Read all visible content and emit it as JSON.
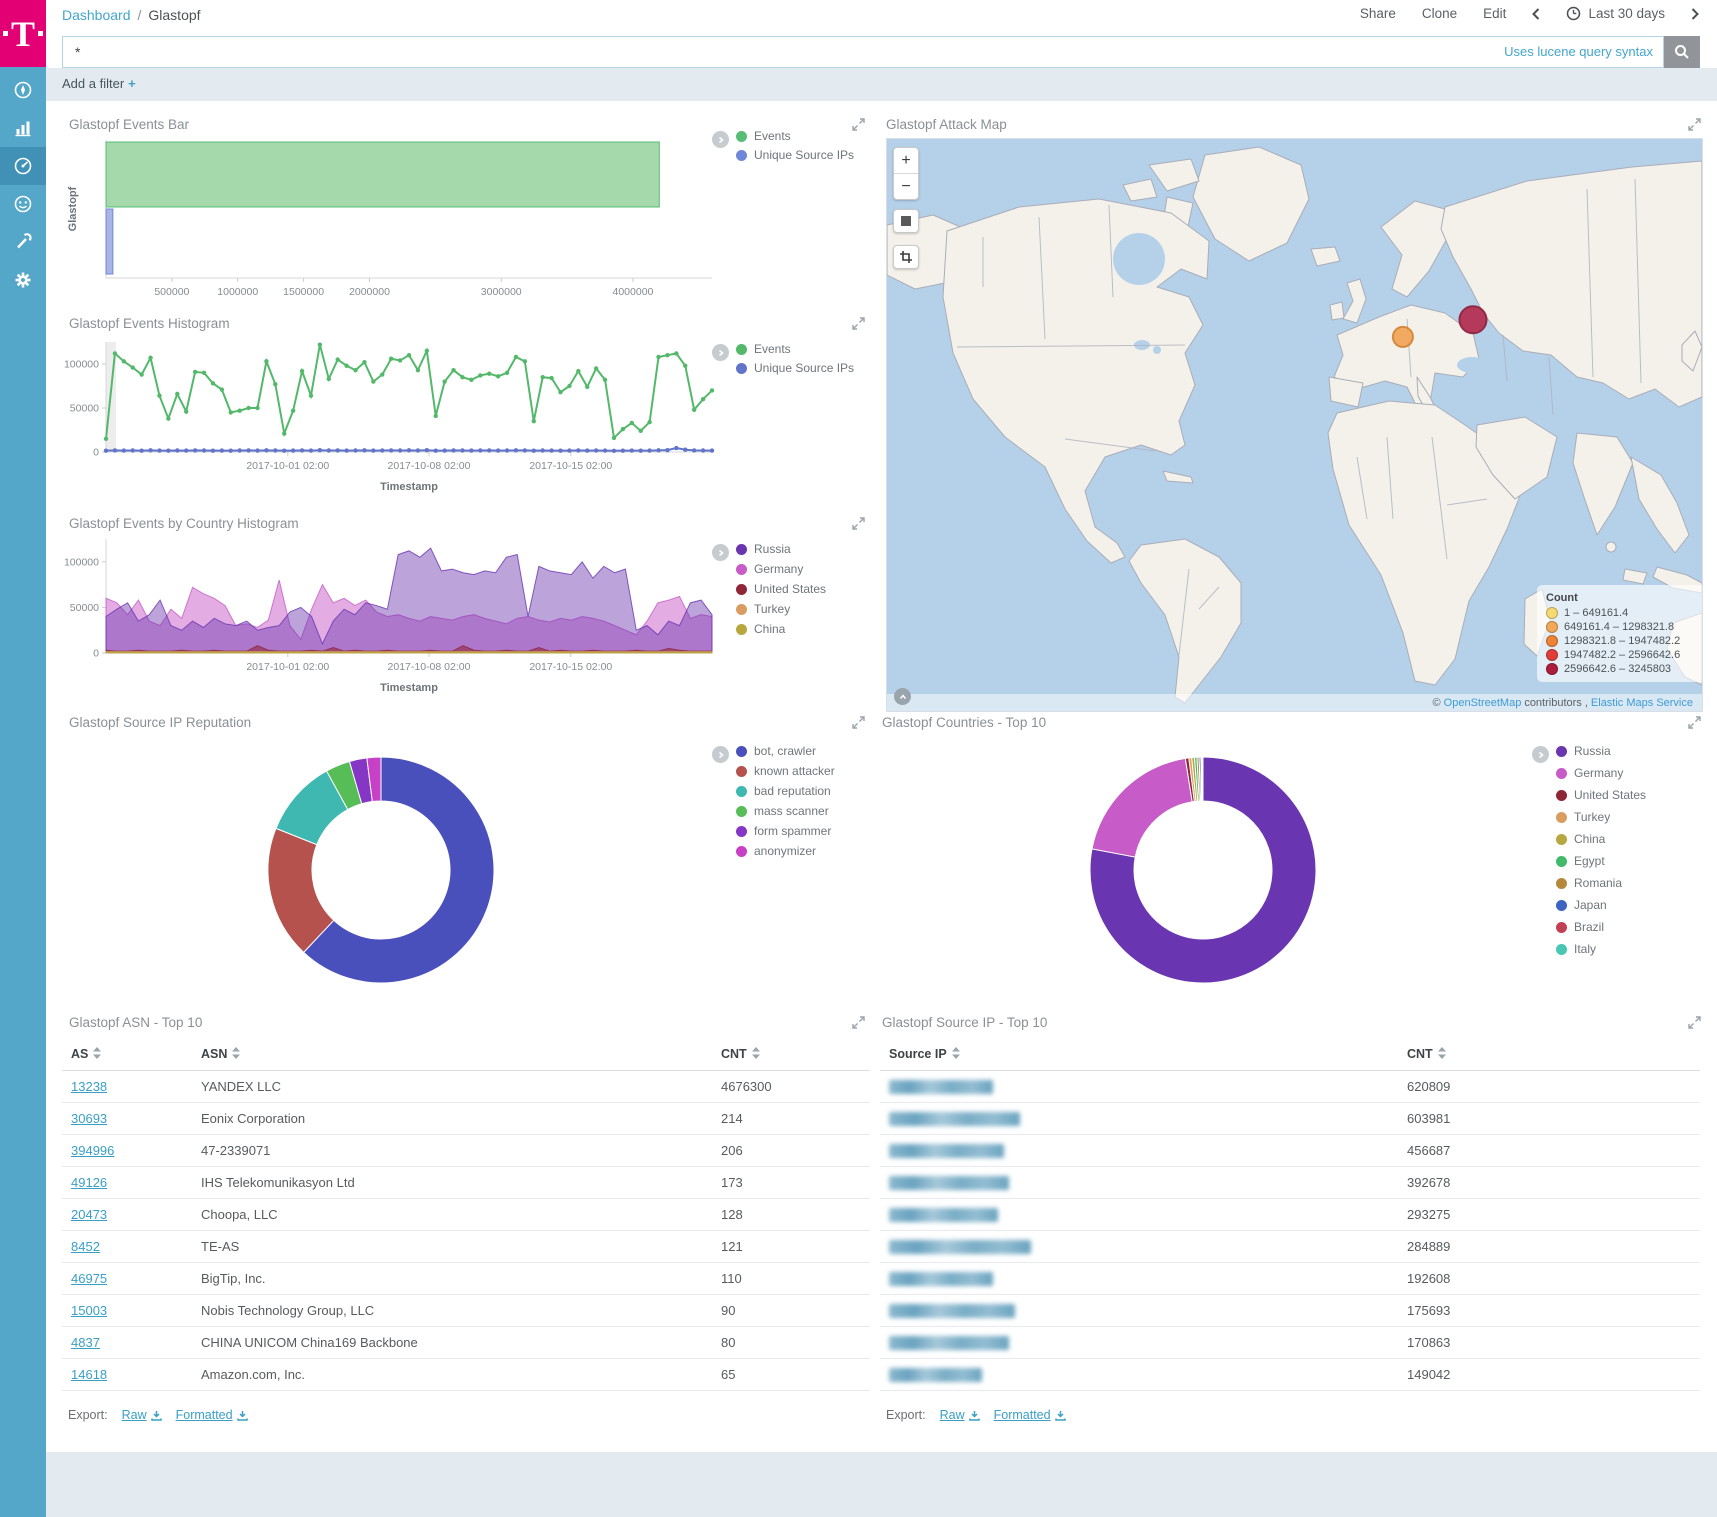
{
  "topbar": {
    "breadcrumb": {
      "root": "Dashboard",
      "separator": "/",
      "current": "Glastopf"
    },
    "actions": {
      "share": "Share",
      "clone": "Clone",
      "edit": "Edit"
    },
    "time_range": "Last 30 days"
  },
  "querybar": {
    "value": "*",
    "hint": "Uses lucene query syntax"
  },
  "filterbar": {
    "add_filter_label": "Add a filter",
    "plus": "+"
  },
  "panels": {
    "events_bar": {
      "title": "Glastopf Events Bar"
    },
    "attack_map": {
      "title": "Glastopf Attack Map",
      "controls": {
        "zoom_in": "+",
        "zoom_out": "−"
      },
      "legend": {
        "title": "Count",
        "ranges": [
          {
            "label": "1 – 649161.4",
            "color": "#f7d974"
          },
          {
            "label": "649161.4 – 1298321.8",
            "color": "#f2a857"
          },
          {
            "label": "1298321.8 – 1947482.2",
            "color": "#ee8335"
          },
          {
            "label": "1947482.2 – 2596642.6",
            "color": "#e23e38"
          },
          {
            "label": "2596642.6 – 3245803",
            "color": "#ae1e3c"
          }
        ]
      },
      "markers": [
        {
          "fx": 0.633,
          "fy": 0.346,
          "r": 10,
          "color": "#f2a558",
          "stroke": "#d4802f"
        },
        {
          "fx": 0.719,
          "fy": 0.316,
          "r": 13.5,
          "color": "#b52d4f",
          "stroke": "#8e1b3a"
        }
      ],
      "attribution": {
        "prefix": "©",
        "link1": "OpenStreetMap",
        "middle": "contributors ,",
        "link2": "Elastic Maps Service"
      }
    },
    "events_histogram": {
      "title": "Glastopf Events Histogram"
    },
    "country_histogram": {
      "title": "Glastopf Events by Country Histogram"
    },
    "reputation": {
      "title": "Glastopf Source IP Reputation"
    },
    "countries": {
      "title": "Glastopf Countries - Top 10"
    },
    "asn_table": {
      "title": "Glastopf ASN - Top 10",
      "columns": [
        "AS",
        "ASN",
        "CNT"
      ],
      "rows": [
        [
          "13238",
          "YANDEX LLC",
          "4676300"
        ],
        [
          "30693",
          "Eonix Corporation",
          "214"
        ],
        [
          "394996",
          "47-2339071",
          "206"
        ],
        [
          "49126",
          "IHS Telekomunikasyon Ltd",
          "173"
        ],
        [
          "20473",
          "Choopa, LLC",
          "128"
        ],
        [
          "8452",
          "TE-AS",
          "121"
        ],
        [
          "46975",
          "BigTip, Inc.",
          "110"
        ],
        [
          "15003",
          "Nobis Technology Group, LLC",
          "90"
        ],
        [
          "4837",
          "CHINA UNICOM China169 Backbone",
          "80"
        ],
        [
          "14618",
          "Amazon.com, Inc.",
          "65"
        ]
      ],
      "export_label": "Export:",
      "export_raw": "Raw",
      "export_formatted": "Formatted"
    },
    "ip_table": {
      "title": "Glastopf Source IP - Top 10",
      "columns": [
        "Source IP",
        "CNT"
      ],
      "rows": [
        {
          "redacted": true,
          "blur_width": 104,
          "cnt": "620809"
        },
        {
          "redacted": true,
          "blur_width": 131,
          "cnt": "603981"
        },
        {
          "redacted": true,
          "blur_width": 115,
          "cnt": "456687"
        },
        {
          "redacted": true,
          "blur_width": 120,
          "cnt": "392678"
        },
        {
          "redacted": true,
          "blur_width": 109,
          "cnt": "293275"
        },
        {
          "redacted": true,
          "blur_width": 142,
          "cnt": "284889"
        },
        {
          "redacted": true,
          "blur_width": 104,
          "cnt": "192608"
        },
        {
          "redacted": true,
          "blur_width": 126,
          "cnt": "175693"
        },
        {
          "redacted": true,
          "blur_width": 120,
          "cnt": "170863"
        },
        {
          "redacted": true,
          "blur_width": 93,
          "cnt": "149042"
        }
      ],
      "export_label": "Export:",
      "export_raw": "Raw",
      "export_formatted": "Formatted"
    }
  },
  "chart_data": [
    {
      "id": "events_bar",
      "type": "bar",
      "orientation": "horizontal",
      "title": "Glastopf Events Bar",
      "categories": [
        "Glastopf"
      ],
      "ylabel": "Glastopf",
      "xlim": [
        0,
        4600000
      ],
      "xticks": [
        500000,
        1000000,
        1500000,
        2000000,
        3000000,
        4000000
      ],
      "series": [
        {
          "name": "Events",
          "color": "#57bd74",
          "fill": "#a5d8ab",
          "value": 4200000
        },
        {
          "name": "Unique Source IPs",
          "color": "#6f87d8",
          "fill": "#aab4e6",
          "value": 52000
        }
      ]
    },
    {
      "id": "events_histogram",
      "type": "line",
      "title": "Glastopf Events Histogram",
      "xlabel": "Timestamp",
      "ylim": [
        0,
        125000
      ],
      "yticks": [
        0,
        50000,
        100000
      ],
      "xticks": [
        {
          "f": 0.3,
          "label": "2017-10-01 02:00"
        },
        {
          "f": 0.533,
          "label": "2017-10-08 02:00"
        },
        {
          "f": 0.767,
          "label": "2017-10-15 02:00"
        }
      ],
      "partial_band": true,
      "series": [
        {
          "name": "Events",
          "color": "#54b86b",
          "values": [
            15000,
            112000,
            103000,
            96000,
            88000,
            107000,
            64000,
            38000,
            66000,
            46000,
            91000,
            90000,
            78000,
            71000,
            45000,
            47000,
            50000,
            50000,
            103000,
            77000,
            21000,
            47000,
            92000,
            64000,
            122000,
            83000,
            105000,
            98000,
            93000,
            102000,
            80000,
            88000,
            106000,
            104000,
            110000,
            93000,
            115000,
            41000,
            80000,
            93000,
            85000,
            82000,
            87000,
            89000,
            86000,
            90000,
            108000,
            103000,
            35000,
            85000,
            84000,
            68000,
            75000,
            92000,
            74000,
            95000,
            82000,
            16000,
            26000,
            33000,
            24000,
            34000,
            108000,
            110000,
            112000,
            98000,
            48000,
            60000,
            70000
          ]
        },
        {
          "name": "Unique Source IPs",
          "color": "#6274c9",
          "values": [
            1500,
            1800,
            1600,
            1700,
            1500,
            1900,
            1600,
            1500,
            1700,
            1600,
            1800,
            1700,
            1500,
            1600,
            1500,
            1700,
            1800,
            1600,
            1900,
            1700,
            1500,
            1600,
            1800,
            1600,
            2000,
            1700,
            1800,
            1600,
            1700,
            1900,
            1600,
            1700,
            1800,
            1700,
            1900,
            1700,
            2000,
            1500,
            1600,
            1800,
            1700,
            1600,
            1700,
            1800,
            1600,
            1700,
            1900,
            1800,
            1500,
            1700,
            1600,
            1500,
            1600,
            1800,
            1600,
            1700,
            1600,
            1400,
            1500,
            1600,
            1500,
            1600,
            1900,
            2100,
            4500,
            2600,
            1800,
            1700,
            1600
          ]
        }
      ]
    },
    {
      "id": "country_histogram",
      "type": "area",
      "title": "Glastopf Events by Country Histogram",
      "xlabel": "Timestamp",
      "ylim": [
        0,
        125000
      ],
      "yticks": [
        0,
        50000,
        100000
      ],
      "xticks": [
        {
          "f": 0.3,
          "label": "2017-10-01 02:00"
        },
        {
          "f": 0.533,
          "label": "2017-10-08 02:00"
        },
        {
          "f": 0.767,
          "label": "2017-10-15 02:00"
        }
      ],
      "legend": [
        {
          "label": "Russia",
          "color": "#6a35b0"
        },
        {
          "label": "Germany",
          "color": "#c75bc7"
        },
        {
          "label": "United States",
          "color": "#8f2638"
        },
        {
          "label": "Turkey",
          "color": "#d99d61"
        },
        {
          "label": "China",
          "color": "#b8a73f"
        }
      ],
      "series": [
        {
          "name": "Germany",
          "color": "#c75bc7",
          "opacity": 0.5,
          "values": [
            60000,
            55000,
            42000,
            58000,
            35000,
            30000,
            48000,
            38000,
            72000,
            65000,
            60000,
            52000,
            30000,
            32000,
            28000,
            36000,
            80000,
            30000,
            15000,
            48000,
            75000,
            55000,
            60000,
            52000,
            58000,
            45000,
            40000,
            42000,
            38000,
            35000,
            40000,
            38000,
            36000,
            40000,
            42000,
            38000,
            35000,
            32000,
            38000,
            40000,
            36000,
            34000,
            38000,
            36000,
            40000,
            38000,
            35000,
            30000,
            25000,
            20000,
            35000,
            55000,
            58000,
            62000,
            38000,
            42000,
            40000
          ]
        },
        {
          "name": "Russia",
          "color": "#6a35b0",
          "opacity": 0.45,
          "values": [
            40000,
            48000,
            55000,
            35000,
            42000,
            58000,
            30000,
            25000,
            35000,
            28000,
            38000,
            32000,
            30000,
            35000,
            25000,
            28000,
            30000,
            45000,
            50000,
            40000,
            10000,
            35000,
            48000,
            42000,
            55000,
            52000,
            48000,
            108000,
            112000,
            105000,
            115000,
            90000,
            92000,
            88000,
            86000,
            90000,
            88000,
            105000,
            108000,
            40000,
            95000,
            90000,
            88000,
            86000,
            100000,
            82000,
            95000,
            88000,
            92000,
            25000,
            30000,
            20000,
            35000,
            30000,
            55000,
            58000,
            42000
          ]
        },
        {
          "name": "United States",
          "color": "#8f2638",
          "opacity": 0.6,
          "values": [
            3000,
            2000,
            2000,
            3000,
            2000,
            2000,
            2000,
            3000,
            2000,
            2000,
            3000,
            2000,
            2000,
            2000,
            8000,
            3000,
            2000,
            2000,
            2000,
            3000,
            2000,
            6000,
            2000,
            3000,
            2000,
            2000,
            3000,
            2000,
            2000,
            2000,
            3000,
            2000,
            2000,
            8000,
            3000,
            2000,
            2000,
            3000,
            2000,
            2000,
            6000,
            2000,
            3000,
            2000,
            2000,
            3000,
            2000,
            2000,
            2000,
            3000,
            2000,
            2000,
            5000,
            3000,
            2000,
            2000,
            2000
          ]
        },
        {
          "name": "Turkey",
          "color": "#d99d61",
          "opacity": 0.6,
          "values": [
            1500,
            1500
          ]
        },
        {
          "name": "China",
          "color": "#b8a73f",
          "opacity": 0.6,
          "values": [
            1000,
            1000
          ]
        }
      ]
    },
    {
      "id": "reputation_donut",
      "type": "pie",
      "donut": true,
      "title": "Glastopf Source IP Reputation",
      "slices": [
        {
          "label": "bot, crawler",
          "color": "#4a50bb",
          "pct": 62
        },
        {
          "label": "known attacker",
          "color": "#b5524e",
          "pct": 19
        },
        {
          "label": "bad reputation",
          "color": "#3fb8b2",
          "pct": 11
        },
        {
          "label": "mass scanner",
          "color": "#57bd57",
          "pct": 3.5
        },
        {
          "label": "form spammer",
          "color": "#8636c4",
          "pct": 2.5
        },
        {
          "label": "anonymizer",
          "color": "#c741c7",
          "pct": 2
        }
      ]
    },
    {
      "id": "countries_donut",
      "type": "pie",
      "donut": true,
      "title": "Glastopf Countries - Top 10",
      "slices": [
        {
          "label": "Russia",
          "color": "#6a35b0",
          "pct": 78
        },
        {
          "label": "Germany",
          "color": "#c75bc7",
          "pct": 19.5
        },
        {
          "label": "United States",
          "color": "#8f2638",
          "pct": 0.5
        },
        {
          "label": "Turkey",
          "color": "#d99d61",
          "pct": 0.4
        },
        {
          "label": "China",
          "color": "#b8a73f",
          "pct": 0.4
        },
        {
          "label": "Egypt",
          "color": "#41ba6b",
          "pct": 0.35
        },
        {
          "label": "Romania",
          "color": "#b5893b",
          "pct": 0.3
        },
        {
          "label": "Japan",
          "color": "#3c64c0",
          "pct": 0.25
        },
        {
          "label": "Brazil",
          "color": "#c24055",
          "pct": 0.15
        },
        {
          "label": "Italy",
          "color": "#48c7b4",
          "pct": 0.15
        }
      ]
    }
  ]
}
